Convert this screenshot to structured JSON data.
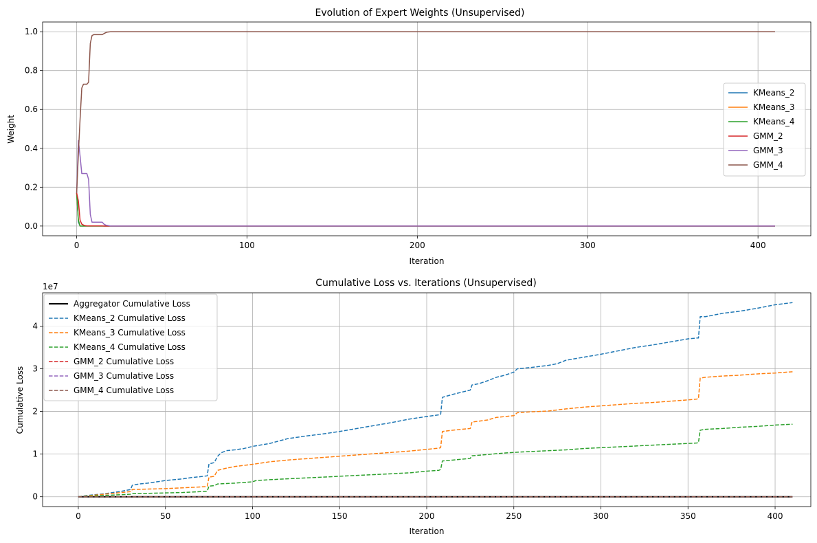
{
  "chart_data": [
    {
      "type": "line",
      "title": "Evolution of Expert Weights (Unsupervised)",
      "xlabel": "Iteration",
      "ylabel": "Weight",
      "xlim": [
        -20,
        431
      ],
      "ylim": [
        -0.05,
        1.05
      ],
      "xticks": [
        0,
        100,
        200,
        300,
        400
      ],
      "yticks": [
        0.0,
        0.2,
        0.4,
        0.6,
        0.8,
        1.0
      ],
      "xtick_labels": [
        "0",
        "100",
        "200",
        "300",
        "400"
      ],
      "ytick_labels": [
        "0.0",
        "0.2",
        "0.4",
        "0.6",
        "0.8",
        "1.0"
      ],
      "grid": true,
      "legend": "center-right",
      "series": [
        {
          "name": "KMeans_2",
          "color": "#1f77b4",
          "style": "solid",
          "x": [
            0,
            1,
            2,
            3,
            410
          ],
          "y": [
            0.17,
            0.02,
            0.0,
            0.0,
            0.0
          ]
        },
        {
          "name": "KMeans_3",
          "color": "#ff7f0e",
          "style": "solid",
          "x": [
            0,
            1,
            2,
            3,
            410
          ],
          "y": [
            0.17,
            0.03,
            0.0,
            0.0,
            0.0
          ]
        },
        {
          "name": "KMeans_4",
          "color": "#2ca02c",
          "style": "solid",
          "x": [
            0,
            1,
            2,
            3,
            410
          ],
          "y": [
            0.17,
            0.03,
            0.0,
            0.0,
            0.0
          ]
        },
        {
          "name": "GMM_2",
          "color": "#d62728",
          "style": "solid",
          "x": [
            0,
            1,
            2,
            3,
            4,
            5,
            6,
            15,
            16,
            410
          ],
          "y": [
            0.17,
            0.13,
            0.03,
            0.01,
            0.005,
            0.002,
            0.001,
            0.001,
            0.0,
            0.0
          ]
        },
        {
          "name": "GMM_3",
          "color": "#9467bd",
          "style": "solid",
          "x": [
            0,
            1,
            2,
            3,
            4,
            5,
            6,
            7,
            8,
            9,
            10,
            15,
            16,
            17,
            20,
            410
          ],
          "y": [
            0.17,
            0.44,
            0.36,
            0.27,
            0.27,
            0.27,
            0.27,
            0.24,
            0.06,
            0.02,
            0.02,
            0.02,
            0.01,
            0.005,
            0.0,
            0.0
          ]
        },
        {
          "name": "GMM_4",
          "color": "#8c564b",
          "style": "solid",
          "x": [
            0,
            1,
            2,
            3,
            4,
            5,
            6,
            7,
            8,
            9,
            10,
            14,
            15,
            16,
            17,
            18,
            20,
            30,
            410
          ],
          "y": [
            0.17,
            0.37,
            0.55,
            0.71,
            0.73,
            0.73,
            0.73,
            0.74,
            0.94,
            0.98,
            0.985,
            0.985,
            0.985,
            0.99,
            0.995,
            0.998,
            1.0,
            1.0,
            1.0
          ]
        }
      ]
    },
    {
      "type": "line",
      "title": "Cumulative Loss vs. Iterations (Unsupervised)",
      "xlabel": "Iteration",
      "ylabel": "Cumulative Loss",
      "offset_text": "1e7",
      "xlim": [
        -20.5,
        420.5
      ],
      "ylim": [
        -0.23,
        4.78
      ],
      "xticks": [
        0,
        50,
        100,
        150,
        200,
        250,
        300,
        350,
        400
      ],
      "yticks": [
        0,
        1,
        2,
        3,
        4
      ],
      "xtick_labels": [
        "0",
        "50",
        "100",
        "150",
        "200",
        "250",
        "300",
        "350",
        "400"
      ],
      "ytick_labels": [
        "0",
        "1",
        "2",
        "3",
        "4"
      ],
      "grid": true,
      "legend": "top-left",
      "series": [
        {
          "name": "Aggregator Cumulative Loss",
          "color": "#000000",
          "style": "solid",
          "width": 2,
          "x": [
            0,
            410
          ],
          "y": [
            0.0,
            0.0
          ]
        },
        {
          "name": "KMeans_2 Cumulative Loss",
          "color": "#1f77b4",
          "style": "dashed",
          "x": [
            0,
            5,
            10,
            15,
            20,
            25,
            30,
            31,
            35,
            40,
            45,
            50,
            55,
            60,
            65,
            70,
            74,
            75,
            78,
            80,
            82,
            85,
            90,
            95,
            100,
            110,
            120,
            130,
            140,
            150,
            160,
            170,
            180,
            190,
            200,
            207,
            208,
            209,
            215,
            220,
            225,
            226,
            230,
            235,
            240,
            245,
            250,
            252,
            260,
            270,
            275,
            280,
            290,
            300,
            310,
            320,
            330,
            340,
            350,
            355,
            356,
            357,
            360,
            370,
            380,
            390,
            400,
            410
          ],
          "y": [
            0.0,
            0.03,
            0.05,
            0.07,
            0.1,
            0.13,
            0.17,
            0.27,
            0.3,
            0.32,
            0.35,
            0.38,
            0.4,
            0.42,
            0.45,
            0.47,
            0.49,
            0.77,
            0.8,
            0.95,
            1.03,
            1.08,
            1.1,
            1.13,
            1.18,
            1.25,
            1.36,
            1.42,
            1.47,
            1.53,
            1.6,
            1.67,
            1.74,
            1.82,
            1.88,
            1.92,
            1.93,
            2.33,
            2.4,
            2.45,
            2.5,
            2.62,
            2.65,
            2.72,
            2.8,
            2.85,
            2.92,
            3.0,
            3.03,
            3.08,
            3.12,
            3.2,
            3.27,
            3.34,
            3.42,
            3.5,
            3.56,
            3.63,
            3.7,
            3.72,
            3.72,
            4.22,
            4.22,
            4.3,
            4.35,
            4.42,
            4.5,
            4.55
          ]
        },
        {
          "name": "KMeans_3 Cumulative Loss",
          "color": "#ff7f0e",
          "style": "dashed",
          "x": [
            0,
            5,
            10,
            15,
            20,
            25,
            30,
            31,
            40,
            50,
            60,
            70,
            74,
            75,
            78,
            80,
            85,
            90,
            100,
            110,
            120,
            130,
            140,
            150,
            160,
            170,
            180,
            190,
            200,
            207,
            208,
            209,
            215,
            220,
            225,
            226,
            235,
            240,
            250,
            252,
            260,
            270,
            280,
            290,
            300,
            310,
            320,
            330,
            340,
            350,
            355,
            356,
            357,
            360,
            370,
            380,
            390,
            400,
            410
          ],
          "y": [
            0.0,
            0.02,
            0.04,
            0.06,
            0.08,
            0.1,
            0.12,
            0.17,
            0.18,
            0.19,
            0.21,
            0.23,
            0.24,
            0.46,
            0.48,
            0.62,
            0.67,
            0.71,
            0.76,
            0.82,
            0.86,
            0.89,
            0.92,
            0.95,
            0.98,
            1.01,
            1.04,
            1.07,
            1.11,
            1.14,
            1.15,
            1.53,
            1.56,
            1.58,
            1.6,
            1.75,
            1.8,
            1.86,
            1.9,
            1.97,
            1.99,
            2.01,
            2.06,
            2.1,
            2.13,
            2.16,
            2.19,
            2.21,
            2.24,
            2.27,
            2.29,
            2.3,
            2.78,
            2.8,
            2.83,
            2.85,
            2.88,
            2.9,
            2.93
          ]
        },
        {
          "name": "KMeans_4 Cumulative Loss",
          "color": "#2ca02c",
          "style": "dashed",
          "x": [
            0,
            5,
            10,
            15,
            20,
            25,
            30,
            31,
            40,
            50,
            60,
            70,
            74,
            75,
            78,
            80,
            85,
            90,
            100,
            102,
            110,
            120,
            130,
            140,
            150,
            160,
            170,
            180,
            190,
            200,
            207,
            208,
            209,
            215,
            220,
            225,
            226,
            235,
            240,
            250,
            260,
            270,
            280,
            290,
            300,
            310,
            320,
            330,
            340,
            350,
            355,
            356,
            357,
            360,
            370,
            380,
            390,
            400,
            410
          ],
          "y": [
            0.0,
            0.01,
            0.02,
            0.03,
            0.04,
            0.05,
            0.06,
            0.08,
            0.08,
            0.09,
            0.1,
            0.12,
            0.13,
            0.25,
            0.26,
            0.3,
            0.31,
            0.32,
            0.35,
            0.38,
            0.4,
            0.42,
            0.44,
            0.46,
            0.48,
            0.5,
            0.52,
            0.54,
            0.56,
            0.6,
            0.62,
            0.64,
            0.84,
            0.86,
            0.88,
            0.9,
            0.96,
            0.99,
            1.01,
            1.04,
            1.06,
            1.08,
            1.1,
            1.13,
            1.15,
            1.17,
            1.19,
            1.21,
            1.23,
            1.25,
            1.26,
            1.27,
            1.56,
            1.58,
            1.6,
            1.63,
            1.65,
            1.68,
            1.7
          ]
        },
        {
          "name": "GMM_2 Cumulative Loss",
          "color": "#d62728",
          "style": "dashed",
          "x": [
            0,
            410
          ],
          "y": [
            0.0,
            0.0
          ]
        },
        {
          "name": "GMM_3 Cumulative Loss",
          "color": "#9467bd",
          "style": "dashed",
          "x": [
            0,
            410
          ],
          "y": [
            0.0,
            0.0
          ]
        },
        {
          "name": "GMM_4 Cumulative Loss",
          "color": "#8c564b",
          "style": "dashed",
          "x": [
            0,
            410
          ],
          "y": [
            0.0,
            0.0
          ]
        }
      ]
    }
  ]
}
